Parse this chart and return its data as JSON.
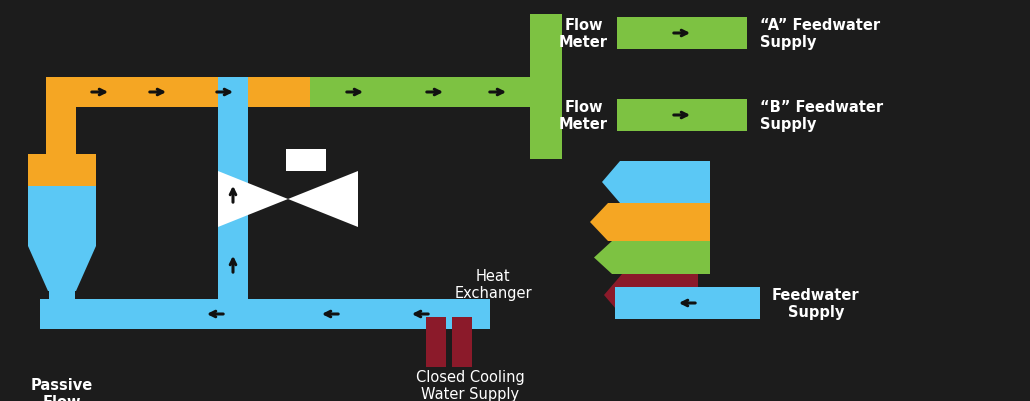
{
  "bg_color": "#1c1c1c",
  "orange": "#F5A623",
  "blue": "#5BC8F5",
  "green": "#7DC242",
  "dark_red": "#8B1A2A",
  "white": "#FFFFFF",
  "black": "#111111",
  "figw": 10.3,
  "figh": 4.02,
  "dpi": 100,
  "labels": {
    "passive_flow": "Passive\nFlow\nControl",
    "heat_exchanger": "Heat\nExchanger",
    "flow_meter_a": "Flow\nMeter",
    "flow_meter_b": "Flow\nMeter",
    "feedwater_a": "“A” Feedwater\nSupply",
    "feedwater_b": "“B” Feedwater\nSupply",
    "feedwater": "Feedwater\nSupply",
    "cooling": "Closed Cooling\nWater Supply"
  }
}
